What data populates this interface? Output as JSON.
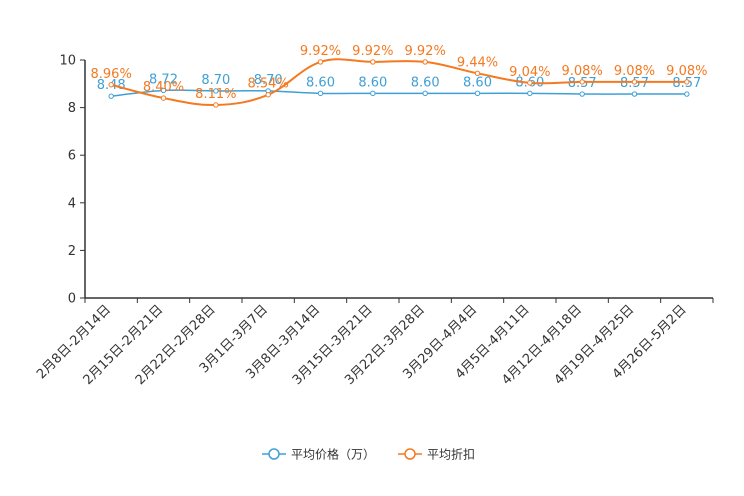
{
  "chart_data": {
    "type": "line",
    "title": "",
    "xlabel": "",
    "ylabel": "",
    "ylim": [
      0,
      10
    ],
    "yticks": [
      0,
      2,
      4,
      6,
      8,
      10
    ],
    "grid": false,
    "legend_position": "bottom-center",
    "categories": [
      "2月8日-2月14日",
      "2月15日-2月21日",
      "2月22日-2月28日",
      "3月1日-3月7日",
      "3月8日-3月14日",
      "3月15日-3月21日",
      "3月22日-3月28日",
      "3月29日-4月4日",
      "4月5日-4月11日",
      "4月12日-4月18日",
      "4月19日-4月25日",
      "4月26日-5月2日"
    ],
    "series": [
      {
        "name": "平均价格（万）",
        "color": "#3fa0d6",
        "values": [
          8.48,
          8.72,
          8.7,
          8.7,
          8.6,
          8.6,
          8.6,
          8.6,
          8.6,
          8.57,
          8.57,
          8.57
        ],
        "labels": [
          "8.48",
          "8.72",
          "8.70",
          "8.70",
          "8.60",
          "8.60",
          "8.60",
          "8.60",
          "8.60",
          "8.57",
          "8.57",
          "8.57"
        ]
      },
      {
        "name": "平均折扣",
        "color": "#f47920",
        "values": [
          8.96,
          8.4,
          8.11,
          8.54,
          9.92,
          9.92,
          9.92,
          9.44,
          9.04,
          9.08,
          9.08,
          9.08
        ],
        "labels": [
          "8.96%",
          "8.40%",
          "8.11%",
          "8.54%",
          "9.92%",
          "9.92%",
          "9.92%",
          "9.44%",
          "9.04%",
          "9.08%",
          "9.08%",
          "9.08%"
        ]
      }
    ]
  }
}
